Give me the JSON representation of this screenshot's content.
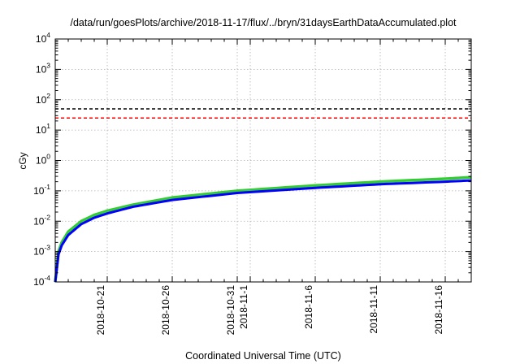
{
  "chart_data": {
    "type": "line",
    "title": "/data/run/goesPlots/archive/2018-11-17/flux/../bryn/31daysEarthDataAccumulated.plot",
    "xlabel": "Coordinated Universal Time (UTC)",
    "ylabel": "cGy",
    "y_scale": "log",
    "ylim": [
      0.0001,
      10000
    ],
    "xlim": [
      "2018-10-17",
      "2018-11-18"
    ],
    "y_ticks": [
      {
        "base": "10",
        "exp": "-4",
        "value": 0.0001
      },
      {
        "base": "10",
        "exp": "-3",
        "value": 0.001
      },
      {
        "base": "10",
        "exp": "-2",
        "value": 0.01
      },
      {
        "base": "10",
        "exp": "-1",
        "value": 0.1
      },
      {
        "base": "10",
        "exp": "0",
        "value": 1
      },
      {
        "base": "10",
        "exp": "1",
        "value": 10
      },
      {
        "base": "10",
        "exp": "2",
        "value": 100
      },
      {
        "base": "10",
        "exp": "3",
        "value": 1000
      },
      {
        "base": "10",
        "exp": "4",
        "value": 10000
      }
    ],
    "x_ticks": [
      {
        "label": "2018-10-21",
        "x": "2018-10-21"
      },
      {
        "label": "2018-10-26",
        "x": "2018-10-26"
      },
      {
        "label": "2018-10-31",
        "x": "2018-10-31"
      },
      {
        "label": "2018-11-1",
        "x": "2018-11-01"
      },
      {
        "label": "2018-11-6",
        "x": "2018-11-06"
      },
      {
        "label": "2018-11-11",
        "x": "2018-11-11"
      },
      {
        "label": "2018-11-16",
        "x": "2018-11-16"
      }
    ],
    "grid": true,
    "threshold_lines": [
      {
        "value": 50,
        "color": "#000000",
        "style": "dashed"
      },
      {
        "value": 25,
        "color": "#ff0000",
        "style": "dashed"
      }
    ],
    "series": [
      {
        "color": "#33cc33",
        "x": [
          "2018-10-17",
          "2018-10-17T06:00",
          "2018-10-17T12:00",
          "2018-10-18",
          "2018-10-19",
          "2018-10-20",
          "2018-10-21",
          "2018-10-23",
          "2018-10-26",
          "2018-10-31",
          "2018-11-06",
          "2018-11-11",
          "2018-11-16",
          "2018-11-18"
        ],
        "y": [
          0.0001,
          0.001,
          0.002,
          0.0045,
          0.01,
          0.016,
          0.022,
          0.035,
          0.06,
          0.1,
          0.15,
          0.2,
          0.25,
          0.28
        ]
      },
      {
        "color": "#0000ff",
        "x": [
          "2018-10-17",
          "2018-10-17T06:00",
          "2018-10-17T12:00",
          "2018-10-18",
          "2018-10-19",
          "2018-10-20",
          "2018-10-21",
          "2018-10-23",
          "2018-10-26",
          "2018-10-31",
          "2018-11-06",
          "2018-11-11",
          "2018-11-16",
          "2018-11-18"
        ],
        "y": [
          0.0001,
          0.0008,
          0.0016,
          0.0035,
          0.008,
          0.013,
          0.018,
          0.03,
          0.05,
          0.085,
          0.125,
          0.165,
          0.2,
          0.22
        ]
      }
    ]
  }
}
